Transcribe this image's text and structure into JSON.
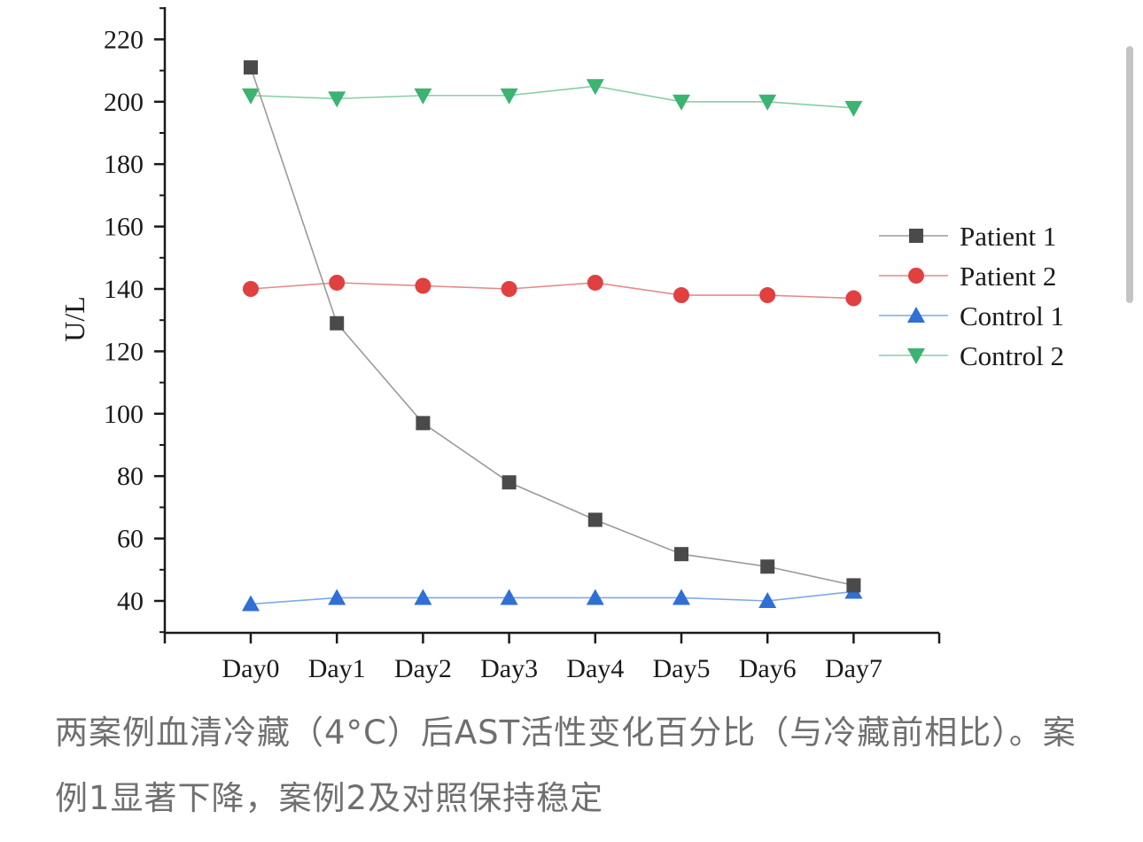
{
  "chart_data": {
    "type": "line",
    "categories": [
      "Day0",
      "Day1",
      "Day2",
      "Day3",
      "Day4",
      "Day5",
      "Day6",
      "Day7"
    ],
    "ylabel": "U/L",
    "xlabel": "",
    "ylim": [
      30,
      230
    ],
    "yticks": [
      40,
      60,
      80,
      100,
      120,
      140,
      160,
      180,
      200,
      220
    ],
    "legend_position": "right",
    "series": [
      {
        "name": "Patient 1",
        "marker": "square",
        "color": "#4a4a4a",
        "line_color": "#9a9a9a",
        "values": [
          211,
          129,
          97,
          78,
          66,
          55,
          51,
          45
        ]
      },
      {
        "name": "Patient 2",
        "marker": "circle",
        "color": "#e04040",
        "line_color": "#e48a8a",
        "values": [
          140,
          142,
          141,
          140,
          142,
          138,
          138,
          137
        ]
      },
      {
        "name": "Control 1",
        "marker": "triangle-up",
        "color": "#2f6fd6",
        "line_color": "#7ea8e8",
        "values": [
          39,
          41,
          41,
          41,
          41,
          41,
          40,
          43
        ]
      },
      {
        "name": "Control 2",
        "marker": "triangle-down",
        "color": "#3cb371",
        "line_color": "#86cfa3",
        "values": [
          202,
          201,
          202,
          202,
          205,
          200,
          200,
          198
        ]
      }
    ]
  },
  "caption": {
    "text": "两案例血清冷藏（4°C）后AST活性变化百分比（与冷藏前相比）。案例1显著下降，案例2及对照保持稳定"
  }
}
